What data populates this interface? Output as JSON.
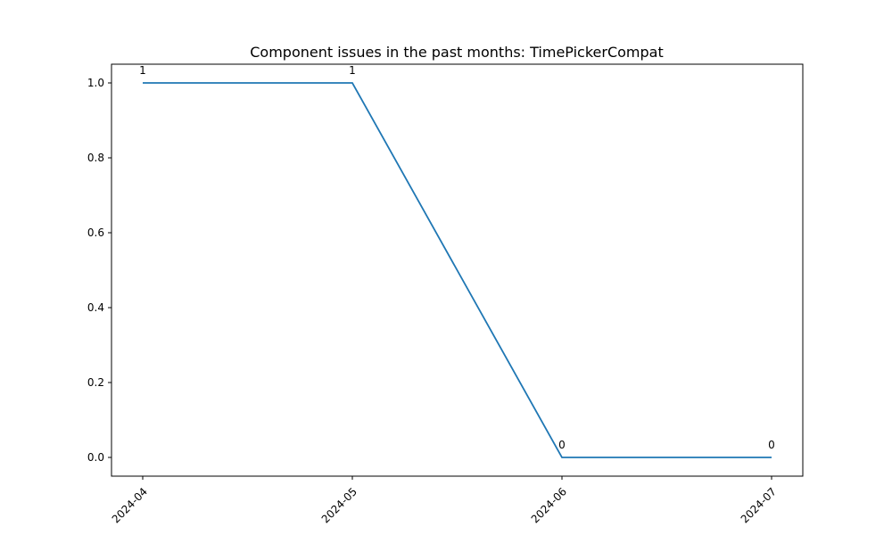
{
  "chart_data": {
    "type": "line",
    "title": "Component issues in the past months: TimePickerCompat",
    "xlabel": "",
    "ylabel": "",
    "x": [
      "2024-04",
      "2024-05",
      "2024-06",
      "2024-07"
    ],
    "series": [
      {
        "values": [
          1,
          1,
          0,
          0
        ],
        "color": "#1f77b4"
      }
    ],
    "data_labels": [
      "1",
      "1",
      "0",
      "0"
    ],
    "yticks": [
      "0.0",
      "0.2",
      "0.4",
      "0.6",
      "0.8",
      "1.0"
    ],
    "ylim": [
      -0.05,
      1.05
    ],
    "grid": false,
    "legend": "none"
  }
}
